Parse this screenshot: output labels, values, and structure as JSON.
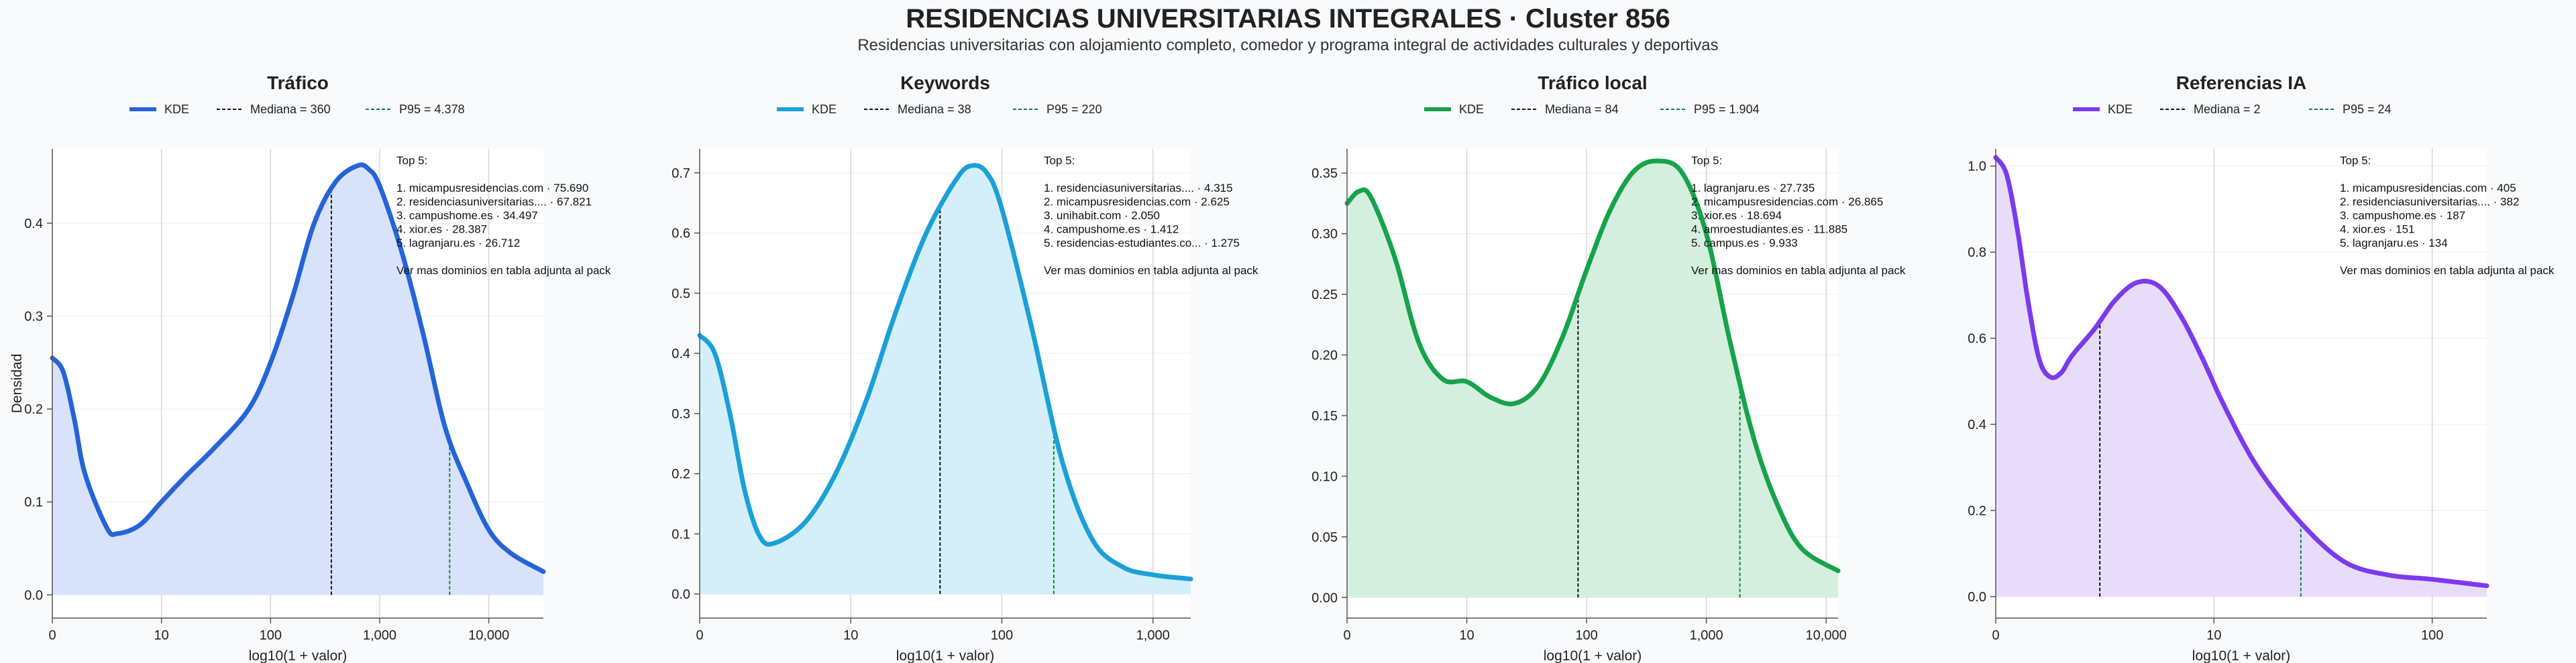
{
  "chart_data": {
    "type": "area",
    "title": "RESIDENCIAS UNIVERSITARIAS INTEGRALES · Cluster 856",
    "subtitle": "Residencias universitarias con alojamiento completo, comedor y programa integral de actividades culturales y deportivas",
    "ylabel": "Densidad",
    "xlabel": "log10(1 + valor)",
    "legend_kde": "KDE",
    "legend_placement": "top-center",
    "grid": true,
    "panels": [
      {
        "name": "trafico",
        "title": "Tráfico",
        "color": "#2563d9",
        "fill": "#d6e2fb",
        "xlim": [
          0,
          4.5
        ],
        "ylim": [
          -0.025,
          0.48
        ],
        "yticks": [
          0.0,
          0.1,
          0.2,
          0.3,
          0.4
        ],
        "ytick_labels": [
          "0.0",
          "0.1",
          "0.2",
          "0.3",
          "0.4"
        ],
        "xticks": [
          0,
          1,
          2,
          3,
          4
        ],
        "xtick_labels": [
          "0",
          "10",
          "100",
          "1,000",
          "10,000"
        ],
        "median_label": "Mediana = 360",
        "median_x": 2.557,
        "p95_label": "P95 = 4.378",
        "p95_x": 3.641,
        "x": [
          0,
          0.1,
          0.2,
          0.3,
          0.5,
          0.6,
          0.8,
          1.0,
          1.2,
          1.5,
          1.8,
          2.0,
          2.2,
          2.4,
          2.6,
          2.8,
          2.9,
          3.0,
          3.2,
          3.4,
          3.6,
          3.8,
          4.0,
          4.2,
          4.5
        ],
        "y": [
          0.255,
          0.24,
          0.19,
          0.13,
          0.072,
          0.066,
          0.075,
          0.1,
          0.125,
          0.16,
          0.2,
          0.25,
          0.32,
          0.4,
          0.445,
          0.462,
          0.458,
          0.44,
          0.37,
          0.28,
          0.18,
          0.12,
          0.07,
          0.045,
          0.025
        ],
        "annotation": [
          "Top 5:",
          "",
          "1. micampusresidencias.com · 75.690",
          "2. residenciasuniversitarias.... · 67.821",
          "3. campushome.es · 34.497",
          "4. xior.es · 28.387",
          "5. lagranjaru.es · 26.712",
          "",
          "Ver mas dominios en tabla adjunta al pack"
        ]
      },
      {
        "name": "keywords",
        "title": "Keywords",
        "color": "#1ba0d8",
        "fill": "#d2eef9",
        "xlim": [
          0,
          3.25
        ],
        "ylim": [
          -0.04,
          0.74
        ],
        "yticks": [
          0.0,
          0.1,
          0.2,
          0.3,
          0.4,
          0.5,
          0.6,
          0.7
        ],
        "ytick_labels": [
          "0.0",
          "0.1",
          "0.2",
          "0.3",
          "0.4",
          "0.5",
          "0.6",
          "0.7"
        ],
        "xticks": [
          0,
          1,
          2,
          3
        ],
        "xtick_labels": [
          "0",
          "10",
          "100",
          "1,000"
        ],
        "median_label": "Mediana = 38",
        "median_x": 1.591,
        "p95_label": "P95 = 220",
        "p95_x": 2.344,
        "x": [
          0,
          0.1,
          0.2,
          0.3,
          0.4,
          0.5,
          0.7,
          0.9,
          1.1,
          1.3,
          1.5,
          1.7,
          1.8,
          1.9,
          2.0,
          2.2,
          2.4,
          2.6,
          2.8,
          3.0,
          3.25
        ],
        "y": [
          0.43,
          0.4,
          0.3,
          0.17,
          0.095,
          0.085,
          0.12,
          0.2,
          0.32,
          0.47,
          0.6,
          0.69,
          0.712,
          0.7,
          0.64,
          0.44,
          0.22,
          0.09,
          0.045,
          0.032,
          0.025
        ],
        "annotation": [
          "Top 5:",
          "",
          "1. residenciasuniversitarias.... · 4.315",
          "2. micampusresidencias.com · 2.625",
          "3. unihabit.com · 2.050",
          "4. campushome.es · 1.412",
          "5. residencias-estudiantes.co... · 1.275",
          "",
          "Ver mas dominios en tabla adjunta al pack"
        ]
      },
      {
        "name": "trafico-local",
        "title": "Tráfico local",
        "color": "#16a34a",
        "fill": "#d3eedc",
        "xlim": [
          0,
          4.1
        ],
        "ylim": [
          -0.017,
          0.37
        ],
        "yticks": [
          0.0,
          0.05,
          0.1,
          0.15,
          0.2,
          0.25,
          0.3,
          0.35
        ],
        "ytick_labels": [
          "0.00",
          "0.05",
          "0.10",
          "0.15",
          "0.20",
          "0.25",
          "0.30",
          "0.35"
        ],
        "xticks": [
          0,
          1,
          2,
          3,
          4
        ],
        "xtick_labels": [
          "0",
          "10",
          "100",
          "1,000",
          "10,000"
        ],
        "median_label": "Mediana = 84",
        "median_x": 1.929,
        "p95_label": "P95 = 1.904",
        "p95_x": 3.28,
        "x": [
          0,
          0.1,
          0.2,
          0.4,
          0.6,
          0.8,
          1.0,
          1.2,
          1.4,
          1.6,
          1.8,
          2.0,
          2.2,
          2.4,
          2.6,
          2.8,
          3.0,
          3.2,
          3.4,
          3.6,
          3.8,
          4.1
        ],
        "y": [
          0.325,
          0.335,
          0.33,
          0.28,
          0.21,
          0.18,
          0.178,
          0.165,
          0.16,
          0.175,
          0.215,
          0.27,
          0.32,
          0.352,
          0.36,
          0.35,
          0.3,
          0.21,
          0.13,
          0.075,
          0.04,
          0.022
        ],
        "annotation": [
          "Top 5:",
          "",
          "1. lagranjaru.es · 27.735",
          "2. micampusresidencias.com · 26.865",
          "3. xior.es · 18.694",
          "4. amroestudiantes.es · 11.885",
          "5. campus.es · 9.933",
          "",
          "Ver mas dominios en tabla adjunta al pack"
        ]
      },
      {
        "name": "referencias-ia",
        "title": "Referencias IA",
        "color": "#7c3aed",
        "fill": "#e6dbfb",
        "xlim": [
          0,
          2.25
        ],
        "ylim": [
          -0.05,
          1.04
        ],
        "yticks": [
          0.0,
          0.2,
          0.4,
          0.6,
          0.8,
          1.0
        ],
        "ytick_labels": [
          "0.0",
          "0.2",
          "0.4",
          "0.6",
          "0.8",
          "1.0"
        ],
        "xticks": [
          0,
          1,
          2
        ],
        "xtick_labels": [
          "0",
          "10",
          "100"
        ],
        "median_label": "Mediana = 2",
        "median_x": 0.477,
        "p95_label": "P95 = 24",
        "p95_x": 1.398,
        "x": [
          0,
          0.05,
          0.1,
          0.15,
          0.2,
          0.25,
          0.3,
          0.35,
          0.45,
          0.55,
          0.65,
          0.75,
          0.85,
          0.95,
          1.05,
          1.2,
          1.4,
          1.6,
          1.8,
          2.0,
          2.25
        ],
        "y": [
          1.02,
          0.98,
          0.85,
          0.68,
          0.55,
          0.51,
          0.52,
          0.56,
          0.62,
          0.69,
          0.73,
          0.72,
          0.65,
          0.55,
          0.44,
          0.3,
          0.17,
          0.08,
          0.05,
          0.04,
          0.025
        ],
        "annotation": [
          "Top 5:",
          "",
          "1. micampusresidencias.com · 405",
          "2. residenciasuniversitarias.... · 382",
          "3. campushome.es · 187",
          "4. xior.es · 151",
          "5. lagranjaru.es · 134",
          "",
          "Ver mas dominios en tabla adjunta al pack"
        ]
      }
    ]
  }
}
